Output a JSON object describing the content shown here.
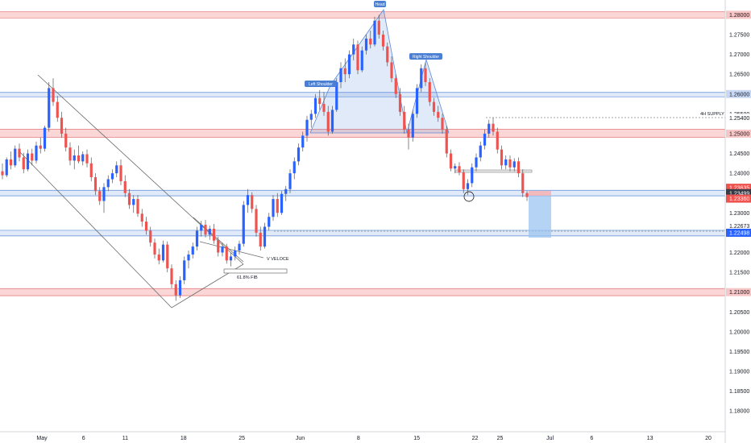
{
  "chart_data": {
    "type": "candlestick",
    "y_axis": {
      "range": [
        1.177,
        1.2815
      ],
      "ticks": [
        "1.28000",
        "1.27500",
        "1.27000",
        "1.26500",
        "1.26000",
        "1.25500",
        "1.25000",
        "1.24500",
        "1.24000",
        "1.23500",
        "1.23000",
        "1.22500",
        "1.22000",
        "1.21500",
        "1.21000",
        "1.20500",
        "1.20000",
        "1.19500",
        "1.19000",
        "1.18500",
        "1.18000"
      ]
    },
    "x_axis": {
      "labels": [
        {
          "text": "May",
          "date": "2021-05-01"
        },
        {
          "text": "6",
          "date": "2021-05-06"
        },
        {
          "text": "11",
          "date": "2021-05-11"
        },
        {
          "text": "18",
          "date": "2021-05-18"
        },
        {
          "text": "25",
          "date": "2021-05-25"
        },
        {
          "text": "Jun",
          "date": "2021-06-01"
        },
        {
          "text": "8",
          "date": "2021-06-08"
        },
        {
          "text": "15",
          "date": "2021-06-15"
        },
        {
          "text": "22",
          "date": "2021-06-22"
        },
        {
          "text": "25",
          "date": "2021-06-25"
        },
        {
          "text": "Jul",
          "date": "2021-07-01"
        },
        {
          "text": "6",
          "date": "2021-07-06"
        },
        {
          "text": "13",
          "date": "2021-07-13"
        },
        {
          "text": "20",
          "date": "2021-07-20"
        }
      ]
    },
    "zones": [
      {
        "kind": "supply",
        "low": 1.2792,
        "high": 1.2808,
        "label": "1.28000"
      },
      {
        "kind": "demand",
        "low": 1.2593,
        "high": 1.2604,
        "label": "1.26000"
      },
      {
        "kind": "supply",
        "low": 1.2491,
        "high": 1.2511,
        "label": "1.25000"
      },
      {
        "kind": "demand",
        "low": 1.2343,
        "high": 1.2357,
        "label": "1.23500"
      },
      {
        "kind": "demand",
        "low": 1.2242,
        "high": 1.2256,
        "label": "1.22500"
      },
      {
        "kind": "supply",
        "low": 1.2091,
        "high": 1.2109,
        "label": "1.21000"
      }
    ],
    "price_tags": [
      {
        "value": "1.25400",
        "style": "plain"
      },
      {
        "value": "1.23635",
        "style": "red"
      },
      {
        "value": "1.23499",
        "style": "dark"
      },
      {
        "value": "1.23360",
        "style": "red"
      },
      {
        "value": "1.22673",
        "style": "plain"
      },
      {
        "value": "1.22498",
        "style": "blue"
      }
    ],
    "annotations": {
      "head": "Head",
      "left_shoulder": "Left Shoulder",
      "right_shoulder": "Right Shoulder",
      "supply_4h": "4H SUPPLY",
      "fib": "61.8% FIB",
      "v_veloce": "V VELOCE"
    },
    "short_position": {
      "entry": 1.235,
      "stop": 1.23635,
      "target": 1.22498
    },
    "candles": [
      [
        1.2405,
        1.2425,
        1.2385,
        1.2395
      ],
      [
        1.2395,
        1.244,
        1.239,
        1.2435
      ],
      [
        1.2435,
        1.2455,
        1.241,
        1.242
      ],
      [
        1.242,
        1.247,
        1.2415,
        1.2462
      ],
      [
        1.2462,
        1.2475,
        1.243,
        1.244
      ],
      [
        1.244,
        1.2452,
        1.24,
        1.241
      ],
      [
        1.241,
        1.246,
        1.2405,
        1.245
      ],
      [
        1.245,
        1.2462,
        1.242,
        1.2432
      ],
      [
        1.2432,
        1.248,
        1.2425,
        1.247
      ],
      [
        1.247,
        1.249,
        1.245,
        1.2462
      ],
      [
        1.2462,
        1.252,
        1.2455,
        1.2515
      ],
      [
        1.2515,
        1.263,
        1.2505,
        1.2615
      ],
      [
        1.2615,
        1.264,
        1.257,
        1.258
      ],
      [
        1.258,
        1.2595,
        1.253,
        1.254
      ],
      [
        1.254,
        1.2555,
        1.249,
        1.25
      ],
      [
        1.25,
        1.2515,
        1.2455,
        1.2465
      ],
      [
        1.2465,
        1.2478,
        1.242,
        1.2432
      ],
      [
        1.2432,
        1.246,
        1.241,
        1.2445
      ],
      [
        1.2445,
        1.247,
        1.2425,
        1.243
      ],
      [
        1.243,
        1.2455,
        1.242,
        1.2448
      ],
      [
        1.2448,
        1.246,
        1.2415,
        1.2425
      ],
      [
        1.2425,
        1.244,
        1.238,
        1.239
      ],
      [
        1.239,
        1.24,
        1.2345,
        1.2355
      ],
      [
        1.2355,
        1.2365,
        1.232,
        1.233
      ],
      [
        1.233,
        1.2375,
        1.23,
        1.2365
      ],
      [
        1.2365,
        1.2395,
        1.2355,
        1.2385
      ],
      [
        1.2385,
        1.241,
        1.2375,
        1.24
      ],
      [
        1.24,
        1.243,
        1.239,
        1.242
      ],
      [
        1.242,
        1.2435,
        1.237,
        1.238
      ],
      [
        1.238,
        1.2395,
        1.234,
        1.235
      ],
      [
        1.235,
        1.236,
        1.231,
        1.232
      ],
      [
        1.232,
        1.2345,
        1.23,
        1.2335
      ],
      [
        1.2335,
        1.2345,
        1.229,
        1.2298
      ],
      [
        1.2298,
        1.231,
        1.2265,
        1.2278
      ],
      [
        1.2278,
        1.229,
        1.2245,
        1.2255
      ],
      [
        1.2255,
        1.2265,
        1.2215,
        1.2225
      ],
      [
        1.2225,
        1.2235,
        1.2185,
        1.2195
      ],
      [
        1.2195,
        1.221,
        1.217,
        1.218
      ],
      [
        1.218,
        1.223,
        1.2175,
        1.222
      ],
      [
        1.222,
        1.2228,
        1.215,
        1.216
      ],
      [
        1.216,
        1.217,
        1.211,
        1.212
      ],
      [
        1.212,
        1.213,
        1.2078,
        1.2092
      ],
      [
        1.2092,
        1.214,
        1.2085,
        1.213
      ],
      [
        1.213,
        1.219,
        1.212,
        1.218
      ],
      [
        1.218,
        1.2205,
        1.216,
        1.2195
      ],
      [
        1.2195,
        1.2225,
        1.2185,
        1.2215
      ],
      [
        1.2215,
        1.2265,
        1.2205,
        1.2255
      ],
      [
        1.2255,
        1.228,
        1.224,
        1.227
      ],
      [
        1.227,
        1.2282,
        1.2238,
        1.2245
      ],
      [
        1.2245,
        1.2268,
        1.2232,
        1.226
      ],
      [
        1.226,
        1.2272,
        1.2222,
        1.223
      ],
      [
        1.223,
        1.224,
        1.219,
        1.22
      ],
      [
        1.22,
        1.2225,
        1.219,
        1.2215
      ],
      [
        1.2215,
        1.2222,
        1.2172,
        1.218
      ],
      [
        1.218,
        1.22,
        1.2165,
        1.219
      ],
      [
        1.219,
        1.2215,
        1.218,
        1.2205
      ],
      [
        1.2205,
        1.223,
        1.2195,
        1.2222
      ],
      [
        1.2222,
        1.233,
        1.2215,
        1.232
      ],
      [
        1.232,
        1.236,
        1.23,
        1.2345
      ],
      [
        1.2345,
        1.2352,
        1.23,
        1.231
      ],
      [
        1.231,
        1.232,
        1.224,
        1.225
      ],
      [
        1.225,
        1.2265,
        1.2205,
        1.2215
      ],
      [
        1.2215,
        1.2275,
        1.221,
        1.2265
      ],
      [
        1.2265,
        1.23,
        1.2255,
        1.229
      ],
      [
        1.229,
        1.2345,
        1.228,
        1.2335
      ],
      [
        1.2335,
        1.235,
        1.229,
        1.23
      ],
      [
        1.23,
        1.2355,
        1.2295,
        1.2348
      ],
      [
        1.2348,
        1.2368,
        1.233,
        1.236
      ],
      [
        1.236,
        1.241,
        1.235,
        1.24
      ],
      [
        1.24,
        1.244,
        1.2385,
        1.243
      ],
      [
        1.243,
        1.2475,
        1.242,
        1.2465
      ],
      [
        1.2465,
        1.2505,
        1.2455,
        1.2495
      ],
      [
        1.2495,
        1.2545,
        1.248,
        1.2535
      ],
      [
        1.2535,
        1.256,
        1.2515,
        1.255
      ],
      [
        1.255,
        1.26,
        1.254,
        1.259
      ],
      [
        1.259,
        1.261,
        1.256,
        1.2575
      ],
      [
        1.2575,
        1.2605,
        1.2545,
        1.2555
      ],
      [
        1.2555,
        1.257,
        1.2495,
        1.2505
      ],
      [
        1.2505,
        1.257,
        1.25,
        1.256
      ],
      [
        1.256,
        1.264,
        1.2555,
        1.263
      ],
      [
        1.263,
        1.268,
        1.2615,
        1.2665
      ],
      [
        1.2665,
        1.269,
        1.263,
        1.265
      ],
      [
        1.265,
        1.271,
        1.264,
        1.27
      ],
      [
        1.27,
        1.274,
        1.2685,
        1.2725
      ],
      [
        1.2725,
        1.2735,
        1.265,
        1.266
      ],
      [
        1.266,
        1.272,
        1.2655,
        1.271
      ],
      [
        1.271,
        1.275,
        1.27,
        1.274
      ],
      [
        1.274,
        1.276,
        1.2715,
        1.2725
      ],
      [
        1.2725,
        1.2795,
        1.272,
        1.2785
      ],
      [
        1.2785,
        1.28,
        1.274,
        1.275
      ],
      [
        1.275,
        1.276,
        1.271,
        1.272
      ],
      [
        1.272,
        1.273,
        1.267,
        1.268
      ],
      [
        1.268,
        1.2695,
        1.263,
        1.264
      ],
      [
        1.264,
        1.265,
        1.259,
        1.26
      ],
      [
        1.26,
        1.2615,
        1.2545,
        1.2555
      ],
      [
        1.2555,
        1.257,
        1.25,
        1.251
      ],
      [
        1.251,
        1.2525,
        1.246,
        1.249
      ],
      [
        1.249,
        1.256,
        1.248,
        1.255
      ],
      [
        1.255,
        1.2625,
        1.254,
        1.2615
      ],
      [
        1.2615,
        1.2675,
        1.2605,
        1.2665
      ],
      [
        1.2665,
        1.268,
        1.262,
        1.263
      ],
      [
        1.263,
        1.264,
        1.257,
        1.258
      ],
      [
        1.258,
        1.259,
        1.2545,
        1.2555
      ],
      [
        1.2555,
        1.257,
        1.253,
        1.254
      ],
      [
        1.254,
        1.255,
        1.25,
        1.251
      ],
      [
        1.251,
        1.252,
        1.244,
        1.245
      ],
      [
        1.245,
        1.246,
        1.2405,
        1.2412
      ],
      [
        1.2412,
        1.2425,
        1.24,
        1.2418
      ],
      [
        1.2418,
        1.2428,
        1.2395,
        1.2402
      ],
      [
        1.2402,
        1.241,
        1.235,
        1.236
      ],
      [
        1.236,
        1.2385,
        1.2345,
        1.2375
      ],
      [
        1.2375,
        1.2425,
        1.2365,
        1.2415
      ],
      [
        1.2415,
        1.245,
        1.2405,
        1.244
      ],
      [
        1.244,
        1.248,
        1.243,
        1.247
      ],
      [
        1.247,
        1.251,
        1.246,
        1.25
      ],
      [
        1.25,
        1.2535,
        1.249,
        1.2525
      ],
      [
        1.2525,
        1.254,
        1.2495,
        1.2505
      ],
      [
        1.2505,
        1.2515,
        1.245,
        1.246
      ],
      [
        1.246,
        1.247,
        1.241,
        1.242
      ],
      [
        1.242,
        1.2445,
        1.241,
        1.2435
      ],
      [
        1.2435,
        1.2445,
        1.2405,
        1.2415
      ],
      [
        1.2415,
        1.2438,
        1.2405,
        1.243
      ],
      [
        1.243,
        1.244,
        1.239,
        1.24
      ],
      [
        1.24,
        1.241,
        1.234,
        1.235
      ],
      [
        1.235,
        1.2355,
        1.233,
        1.234
      ]
    ]
  }
}
